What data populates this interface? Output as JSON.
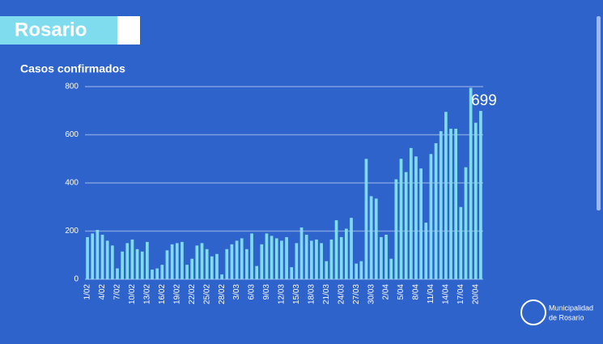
{
  "header": {
    "title": "Rosario"
  },
  "footer": {
    "lines": [
      "Municipalidad",
      "de Rosario"
    ]
  },
  "chart_data": {
    "type": "bar",
    "title": "Casos confirmados",
    "categories": [
      "1/02",
      null,
      null,
      "4/02",
      null,
      null,
      "7/02",
      null,
      null,
      "10/02",
      null,
      null,
      "13/02",
      null,
      null,
      "16/02",
      null,
      null,
      "19/02",
      null,
      null,
      "22/02",
      null,
      null,
      "25/02",
      null,
      null,
      "28/02",
      null,
      null,
      "3/03",
      null,
      null,
      "6/03",
      null,
      null,
      "9/03",
      null,
      null,
      "12/03",
      null,
      null,
      "15/03",
      null,
      null,
      "18/03",
      null,
      null,
      "21/03",
      null,
      null,
      "24/03",
      null,
      null,
      "27/03",
      null,
      null,
      "30/03",
      null,
      null,
      "2/04",
      null,
      null,
      "5/04",
      null,
      null,
      "8/04",
      null,
      null,
      "11/04",
      null,
      null,
      "14/04",
      null,
      null,
      "17/04",
      null,
      null,
      "20/04",
      null
    ],
    "values": [
      175,
      190,
      205,
      185,
      160,
      140,
      45,
      115,
      150,
      165,
      125,
      115,
      155,
      40,
      45,
      60,
      120,
      145,
      150,
      155,
      60,
      85,
      140,
      150,
      125,
      95,
      105,
      20,
      125,
      145,
      160,
      170,
      125,
      190,
      55,
      145,
      190,
      180,
      170,
      160,
      175,
      50,
      150,
      215,
      185,
      160,
      165,
      150,
      75,
      165,
      245,
      175,
      210,
      255,
      65,
      75,
      500,
      345,
      335,
      175,
      185,
      85,
      415,
      500,
      445,
      545,
      510,
      460,
      235,
      520,
      565,
      615,
      695,
      625,
      625,
      300,
      465,
      795,
      650,
      699
    ],
    "color": "#7fdcee",
    "ylim": [
      0,
      800
    ],
    "yticks": [
      0,
      200,
      400,
      600,
      800
    ],
    "grid": true
  }
}
